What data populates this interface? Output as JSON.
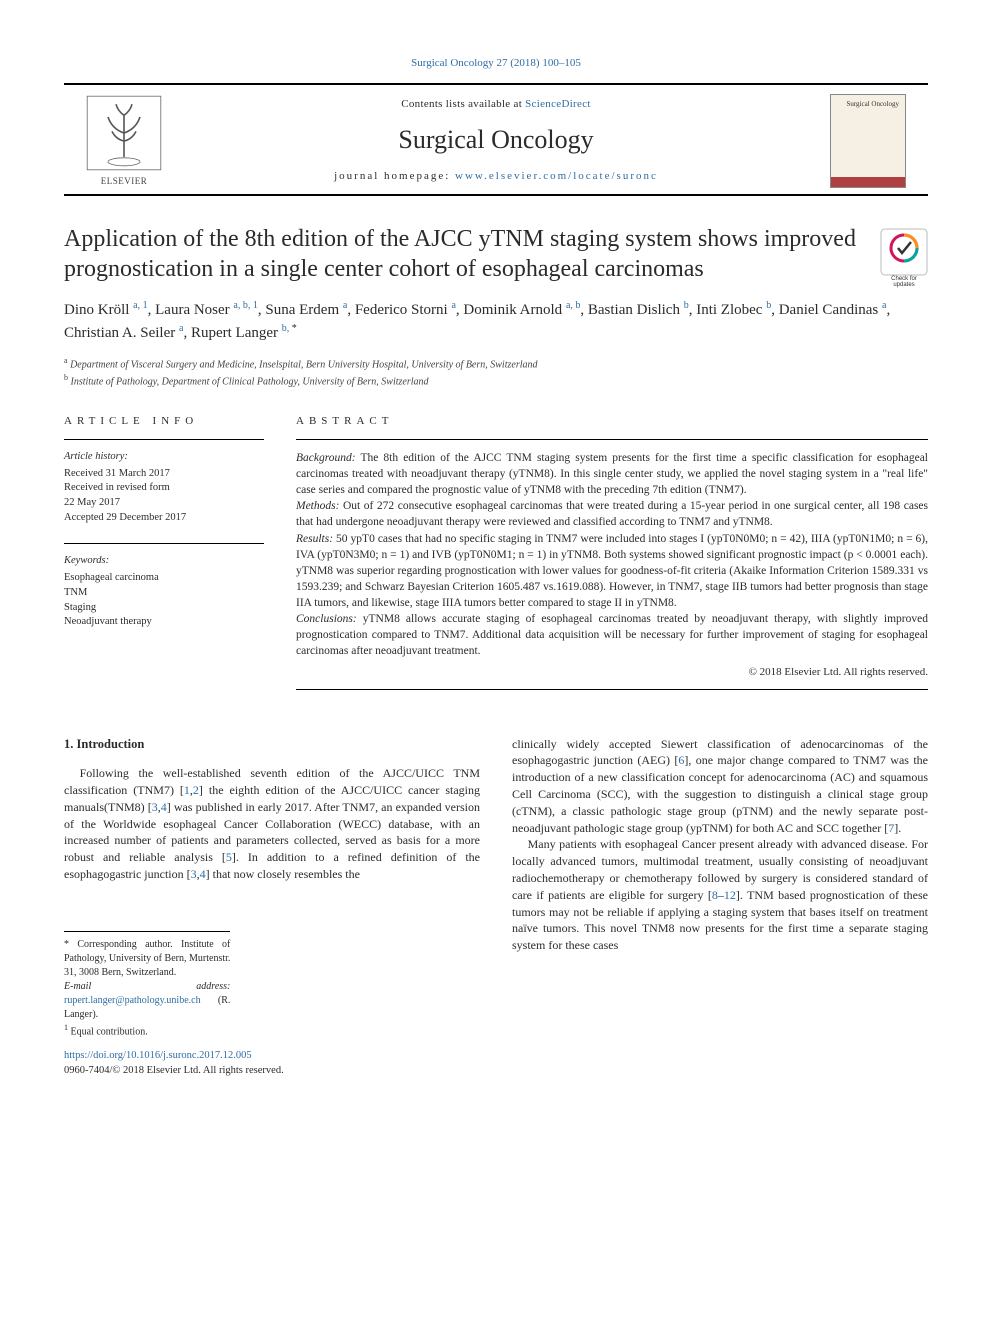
{
  "journal_ref": {
    "text_a": "Surgical Oncology 27 (2018) 100",
    "dash": "–",
    "text_b": "105"
  },
  "masthead": {
    "contents_prefix": "Contents lists available at ",
    "contents_link": "ScienceDirect",
    "journal_name": "Surgical Oncology",
    "homepage_prefix": "journal homepage: ",
    "homepage_link": "www.elsevier.com/locate/suronc",
    "elsevier_label": "ELSEVIER",
    "cover_text": "Surgical Oncology"
  },
  "title": "Application of the 8th edition of the AJCC yTNM staging system shows improved prognostication in a single center cohort of esophageal carcinomas",
  "check_badge": {
    "label1": "Check for",
    "label2": "updates"
  },
  "authors_html": "Dino Kröll <span class='sup'>a, 1</span>, Laura Noser <span class='sup'>a, b, 1</span>, Suna Erdem <span class='sup'>a</span>, Federico Storni <span class='sup'>a</span>, Dominik Arnold <span class='sup'>a, b</span>, Bastian Dislich <span class='sup'>b</span>, Inti Zlobec <span class='sup'>b</span>, Daniel Candinas <span class='sup'>a</span>, Christian A. Seiler <span class='sup'>a</span>, Rupert Langer <span class='sup'>b, </span><span class='sup-black'>*</span>",
  "affiliations": {
    "a": "Department of Visceral Surgery and Medicine, Inselspital, Bern University Hospital, University of Bern, Switzerland",
    "b": "Institute of Pathology, Department of Clinical Pathology, University of Bern, Switzerland"
  },
  "article_info": {
    "head": "ARTICLE INFO",
    "history_label": "Article history:",
    "received": "Received 31 March 2017",
    "revised": "Received in revised form",
    "revised_date": "22 May 2017",
    "accepted": "Accepted 29 December 2017",
    "kw_label": "Keywords:",
    "kw1": "Esophageal carcinoma",
    "kw2": "TNM",
    "kw3": "Staging",
    "kw4": "Neoadjuvant therapy"
  },
  "abstract": {
    "head": "ABSTRACT",
    "background_label": "Background:",
    "background": " The 8th edition of the AJCC TNM staging system presents for the first time a specific classification for esophageal carcinomas treated with neoadjuvant therapy (yTNM8). In this single center study, we applied the novel staging system in a \"real life\" case series and compared the prognostic value of yTNM8 with the preceding 7th edition (TNM7).",
    "methods_label": "Methods:",
    "methods": " Out of 272 consecutive esophageal carcinomas that were treated during a 15-year period in one surgical center, all 198 cases that had undergone neoadjuvant therapy were reviewed and classified according to TNM7 and yTNM8.",
    "results_label": "Results:",
    "results": " 50 ypT0 cases that had no specific staging in TNM7 were included into stages I (ypT0N0M0; n = 42), IIIA (ypT0N1M0; n = 6), IVA (ypT0N3M0; n = 1) and IVB (ypT0N0M1; n = 1) in yTNM8. Both systems showed significant prognostic impact (p < 0.0001 each). yTNM8 was superior regarding prognostication with lower values for goodness-of-fit criteria (Akaike Information Criterion 1589.331 vs 1593.239; and Schwarz Bayesian Criterion 1605.487 vs.1619.088). However, in TNM7, stage IIB tumors had better prognosis than stage IIA tumors, and likewise, stage IIIA tumors better compared to stage II in yTNM8.",
    "conclusions_label": "Conclusions:",
    "conclusions": " yTNM8 allows accurate staging of esophageal carcinomas treated by neoadjuvant therapy, with slightly improved prognostication compared to TNM7. Additional data acquisition will be necessary for further improvement of staging for esophageal carcinomas after neoadjuvant treatment.",
    "copyright": "© 2018 Elsevier Ltd. All rights reserved."
  },
  "body": {
    "intro_head": "1. Introduction",
    "left_p1_a": "Following the well-established seventh edition of the AJCC/UICC TNM classification (TNM7) [",
    "left_p1_r1": "1",
    "left_p1_c1": ",",
    "left_p1_r2": "2",
    "left_p1_b": "] the eighth edition of the AJCC/UICC cancer staging manuals(TNM8) [",
    "left_p1_r3": "3",
    "left_p1_c2": ",",
    "left_p1_r4": "4",
    "left_p1_c": "] was published in early 2017. After TNM7, an expanded version of the Worldwide esophageal Cancer Collaboration (WECC) database, with an increased number of patients and parameters collected, served as basis for a more robust and reliable analysis [",
    "left_p1_r5": "5",
    "left_p1_d": "]. In addition to a refined definition of the esophagogastric junction [",
    "left_p1_r6": "3",
    "left_p1_c3": ",",
    "left_p1_r7": "4",
    "left_p1_e": "] that now closely resembles the",
    "right_p1_a": "clinically widely accepted Siewert classification of adenocarcinomas of the esophagogastric junction (AEG) [",
    "right_p1_r1": "6",
    "right_p1_b": "], one major change compared to TNM7 was the introduction of a new classification concept for adenocarcinoma (AC) and squamous Cell Carcinoma (SCC), with the suggestion to distinguish a clinical stage group (cTNM), a classic pathologic stage group (pTNM) and the newly separate post-neoadjuvant pathologic stage group (ypTNM) for both AC and SCC together [",
    "right_p1_r2": "7",
    "right_p1_c": "].",
    "right_p2_a": "Many patients with esophageal Cancer present already with advanced disease. For locally advanced tumors, multimodal treatment, usually consisting of neoadjuvant radiochemotherapy or chemotherapy followed by surgery is considered standard of care if patients are eligible for surgery [",
    "right_p2_r1": "8",
    "right_p2_dash": "–",
    "right_p2_r2": "12",
    "right_p2_b": "]. TNM based prognostication of these tumors may not be reliable if applying a staging system that bases itself on treatment naïve tumors. This novel TNM8 now presents for the first time a separate staging system for these cases"
  },
  "footnotes": {
    "corr_label": "* Corresponding author. Institute of Pathology, University of Bern, Murtenstr. 31, 3008 Bern, Switzerland.",
    "email_label": "E-mail address:",
    "email": "rupert.langer@pathology.unibe.ch",
    "email_who": " (R. Langer).",
    "equal_sup": "1",
    "equal": " Equal contribution."
  },
  "bottom": {
    "doi": "https://doi.org/10.1016/j.suronc.2017.12.005",
    "issn_line": "0960-7404/© 2018 Elsevier Ltd. All rights reserved."
  },
  "colors": {
    "link": "#2e6da4",
    "text": "#2b2b2b",
    "badge_orange": "#f7941e",
    "badge_teal": "#00a99d",
    "badge_magenta": "#d4145a"
  }
}
